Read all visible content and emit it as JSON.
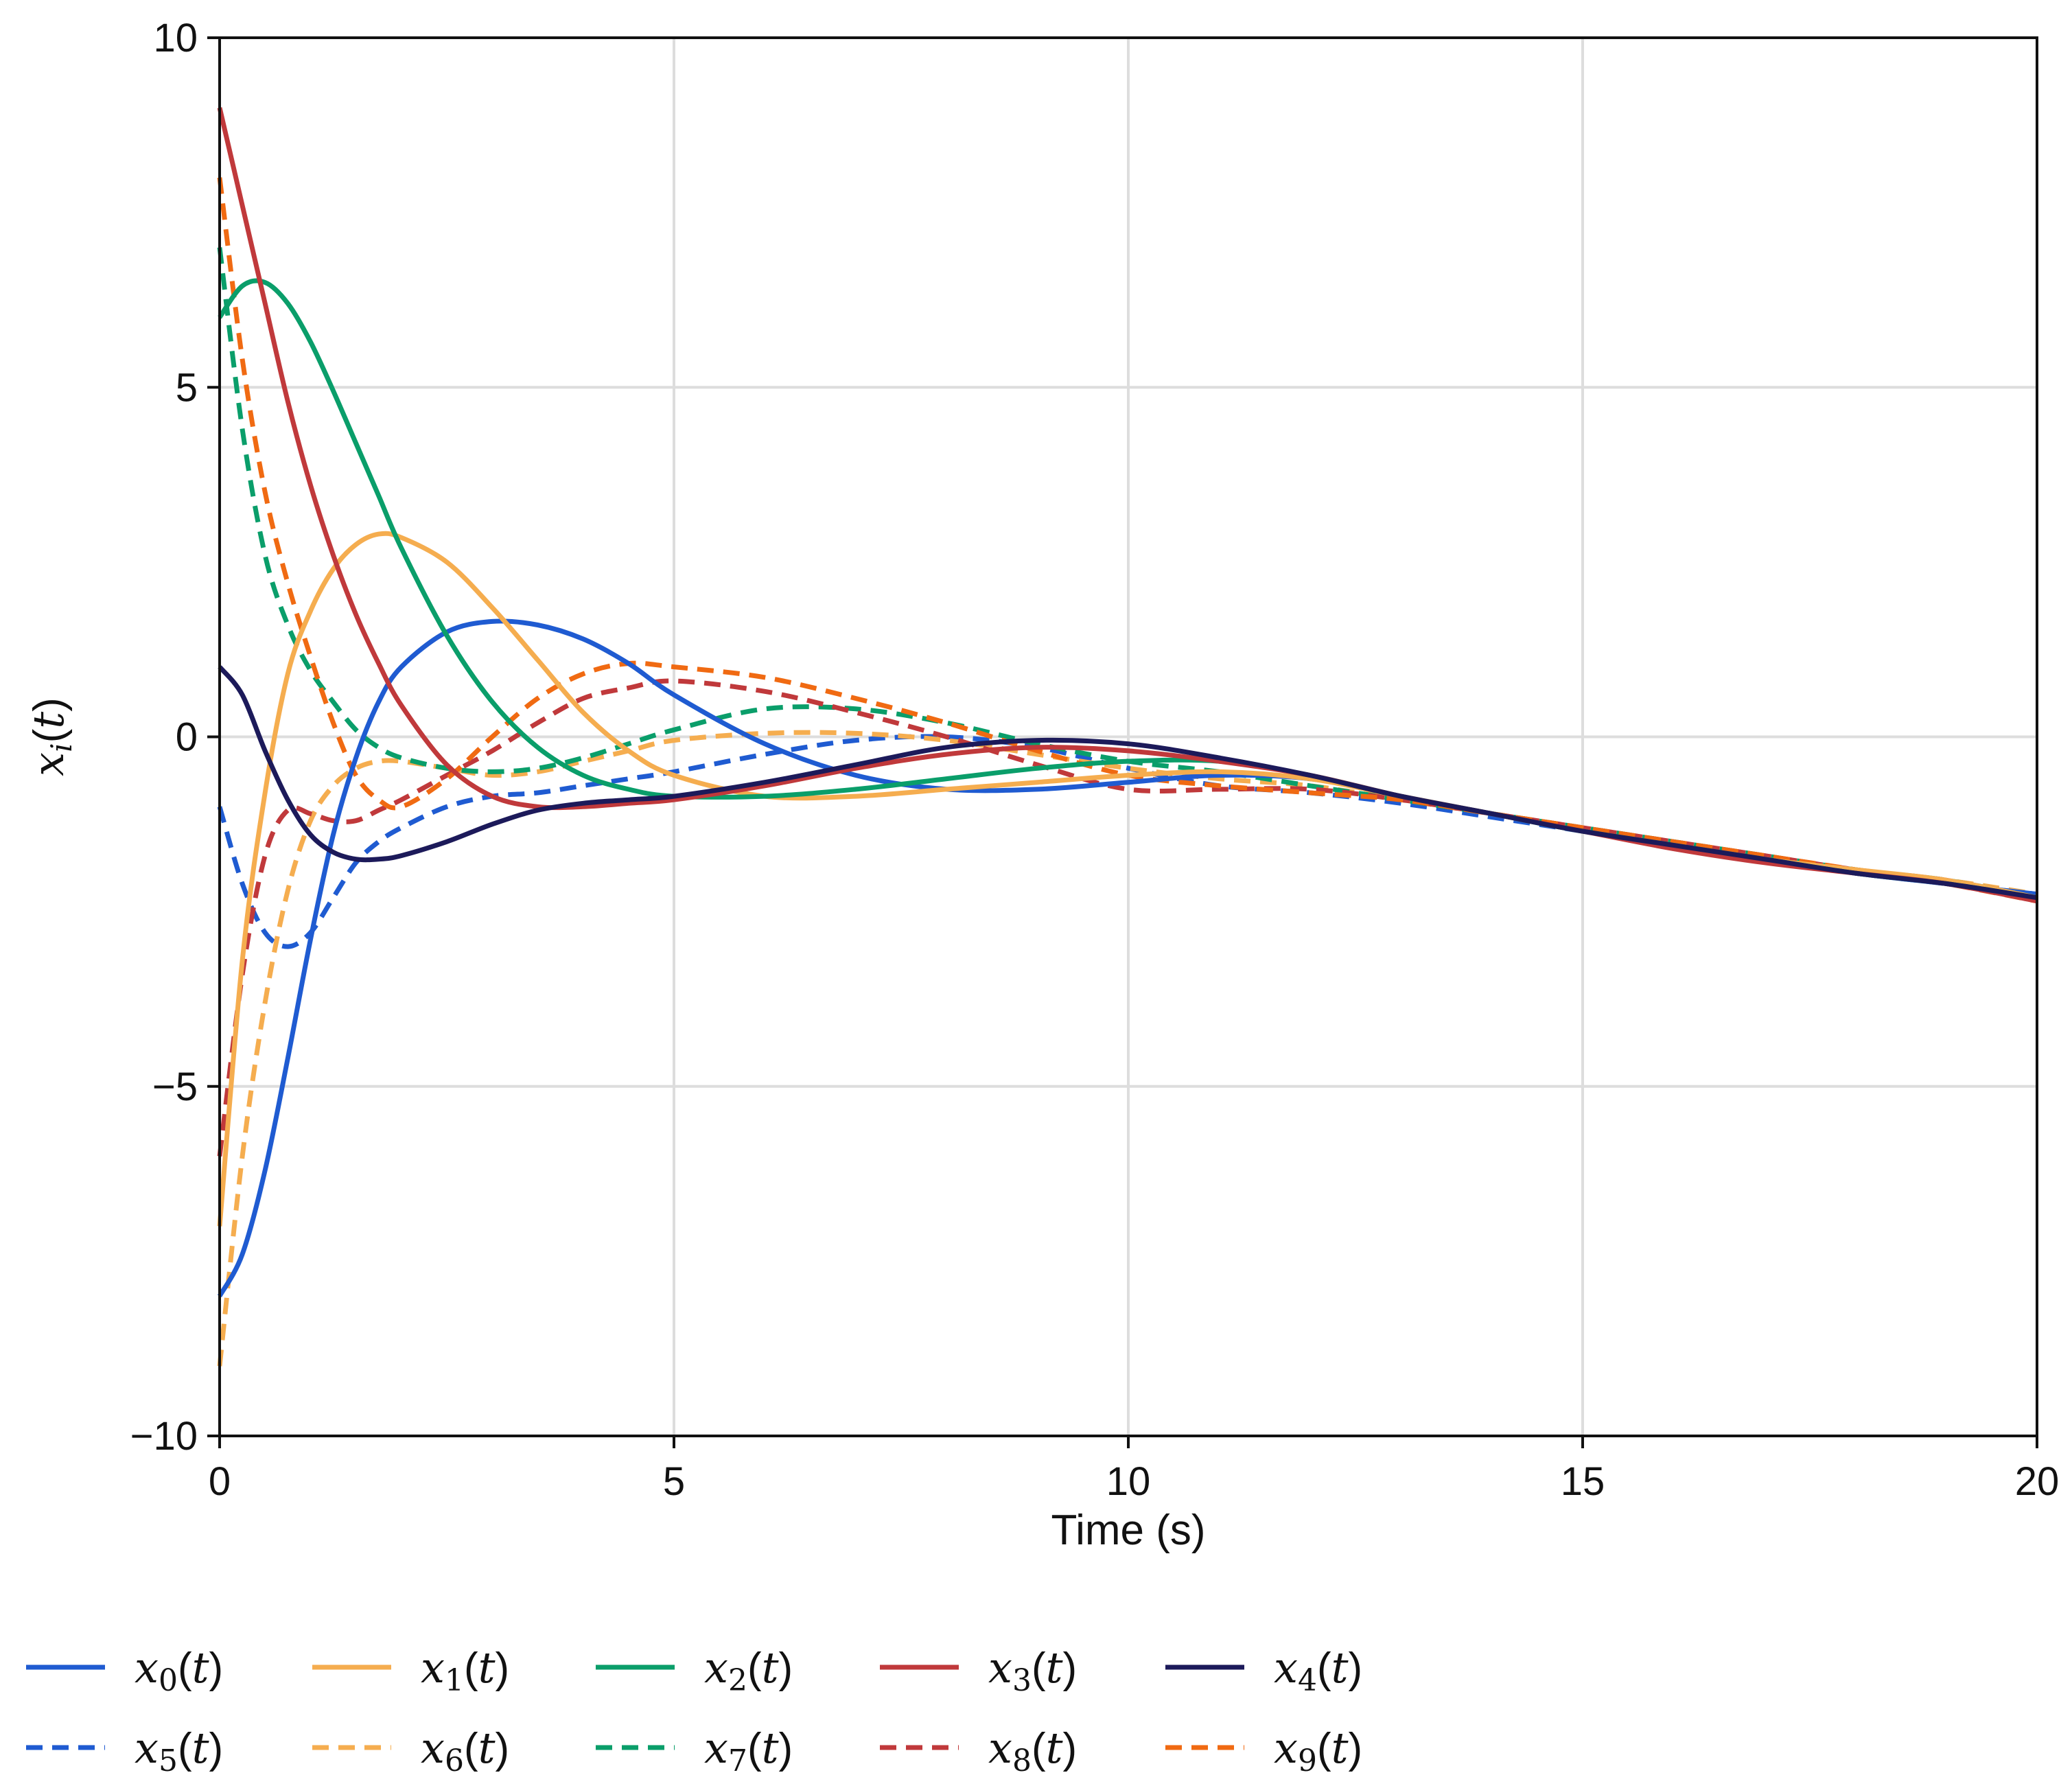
{
  "chart_data": {
    "type": "line",
    "title": "",
    "xlabel": "Time (s)",
    "ylabel": "x_i(t)",
    "xlim": [
      0,
      20
    ],
    "ylim": [
      -10,
      10
    ],
    "xticks": [
      0,
      5,
      10,
      15,
      20
    ],
    "yticks": [
      -10,
      -5,
      0,
      5,
      10
    ],
    "xtick_labels": [
      "0",
      "5",
      "10",
      "15",
      "20"
    ],
    "ytick_labels": [
      "−10",
      "−5",
      "0",
      "5",
      "10"
    ],
    "grid": true,
    "legend_position": "bottom",
    "legend_columns": 5,
    "x": [
      0,
      0.25,
      0.5,
      0.75,
      1,
      1.25,
      1.5,
      1.75,
      2,
      2.5,
      3,
      3.5,
      4,
      4.5,
      5,
      6,
      7,
      8,
      9,
      10,
      11,
      12,
      13,
      14,
      15,
      16,
      17,
      18,
      19,
      20
    ],
    "series": [
      {
        "name": "x0(t)",
        "sub": "0",
        "color": "#1f5bd1",
        "dash": "solid",
        "values": [
          -8,
          -7.4,
          -6.2,
          -4.6,
          -2.9,
          -1.4,
          -0.3,
          0.5,
          1.0,
          1.5,
          1.65,
          1.6,
          1.4,
          1.05,
          0.6,
          -0.1,
          -0.55,
          -0.75,
          -0.75,
          -0.65,
          -0.55,
          -0.6,
          -0.85,
          -1.1,
          -1.35,
          -1.55,
          -1.75,
          -1.95,
          -2.1,
          -2.25
        ]
      },
      {
        "name": "x1(t)",
        "sub": "1",
        "color": "#f5ad4f",
        "dash": "solid",
        "values": [
          -7,
          -3.2,
          -0.8,
          0.9,
          1.8,
          2.4,
          2.75,
          2.9,
          2.85,
          2.5,
          1.85,
          1.1,
          0.35,
          -0.2,
          -0.55,
          -0.85,
          -0.85,
          -0.75,
          -0.65,
          -0.55,
          -0.5,
          -0.6,
          -0.85,
          -1.1,
          -1.35,
          -1.55,
          -1.75,
          -1.9,
          -2.05,
          -2.3
        ]
      },
      {
        "name": "x2(t)",
        "sub": "2",
        "color": "#0a9e6a",
        "dash": "solid",
        "values": [
          6,
          6.45,
          6.5,
          6.2,
          5.65,
          4.95,
          4.2,
          3.45,
          2.7,
          1.45,
          0.5,
          -0.15,
          -0.55,
          -0.75,
          -0.85,
          -0.85,
          -0.75,
          -0.6,
          -0.45,
          -0.35,
          -0.35,
          -0.55,
          -0.85,
          -1.1,
          -1.35,
          -1.55,
          -1.75,
          -1.95,
          -2.1,
          -2.3
        ]
      },
      {
        "name": "x3(t)",
        "sub": "3",
        "color": "#c0393b",
        "dash": "solid",
        "values": [
          9,
          7.6,
          6.2,
          4.8,
          3.6,
          2.6,
          1.75,
          1.05,
          0.45,
          -0.4,
          -0.85,
          -1.0,
          -1.0,
          -0.95,
          -0.9,
          -0.7,
          -0.45,
          -0.25,
          -0.15,
          -0.2,
          -0.35,
          -0.55,
          -0.85,
          -1.1,
          -1.35,
          -1.6,
          -1.8,
          -1.95,
          -2.1,
          -2.35
        ]
      },
      {
        "name": "x4(t)",
        "sub": "4",
        "color": "#1c1a5a",
        "dash": "solid",
        "values": [
          1,
          0.6,
          -0.2,
          -0.9,
          -1.4,
          -1.65,
          -1.75,
          -1.75,
          -1.7,
          -1.5,
          -1.25,
          -1.05,
          -0.95,
          -0.9,
          -0.85,
          -0.65,
          -0.4,
          -0.15,
          -0.05,
          -0.1,
          -0.3,
          -0.55,
          -0.85,
          -1.1,
          -1.35,
          -1.55,
          -1.75,
          -1.95,
          -2.1,
          -2.3
        ]
      },
      {
        "name": "x5(t)",
        "sub": "5",
        "color": "#1f5bd1",
        "dash": "dashed",
        "values": [
          -1,
          -2.1,
          -2.8,
          -3.0,
          -2.8,
          -2.3,
          -1.8,
          -1.5,
          -1.3,
          -1.0,
          -0.85,
          -0.8,
          -0.7,
          -0.6,
          -0.5,
          -0.25,
          -0.05,
          0.0,
          -0.15,
          -0.45,
          -0.7,
          -0.8,
          -0.95,
          -1.15,
          -1.35,
          -1.55,
          -1.75,
          -1.95,
          -2.1,
          -2.25
        ]
      },
      {
        "name": "x6(t)",
        "sub": "6",
        "color": "#f5ad4f",
        "dash": "dashed",
        "values": [
          -9,
          -6.0,
          -3.8,
          -2.2,
          -1.2,
          -0.7,
          -0.45,
          -0.35,
          -0.35,
          -0.45,
          -0.55,
          -0.5,
          -0.35,
          -0.2,
          -0.05,
          0.05,
          0.05,
          -0.05,
          -0.25,
          -0.45,
          -0.6,
          -0.7,
          -0.9,
          -1.1,
          -1.3,
          -1.5,
          -1.7,
          -1.9,
          -2.05,
          -2.25
        ]
      },
      {
        "name": "x7(t)",
        "sub": "7",
        "color": "#0a9e6a",
        "dash": "dashed",
        "values": [
          7,
          4.4,
          2.6,
          1.6,
          0.95,
          0.5,
          0.1,
          -0.15,
          -0.3,
          -0.45,
          -0.5,
          -0.45,
          -0.3,
          -0.1,
          0.1,
          0.4,
          0.4,
          0.2,
          -0.1,
          -0.35,
          -0.5,
          -0.7,
          -0.9,
          -1.1,
          -1.3,
          -1.5,
          -1.7,
          -1.9,
          -2.05,
          -2.3
        ]
      },
      {
        "name": "x8(t)",
        "sub": "8",
        "color": "#c0393b",
        "dash": "dashed",
        "values": [
          -6,
          -3.4,
          -1.7,
          -1.05,
          -1.1,
          -1.2,
          -1.2,
          -1.05,
          -0.9,
          -0.55,
          -0.2,
          0.2,
          0.55,
          0.7,
          0.8,
          0.65,
          0.35,
          0.0,
          -0.4,
          -0.75,
          -0.75,
          -0.75,
          -0.9,
          -1.1,
          -1.3,
          -1.5,
          -1.7,
          -1.9,
          -2.05,
          -2.3
        ]
      },
      {
        "name": "x9(t)",
        "sub": "9",
        "color": "#f06a12",
        "dash": "dashed",
        "values": [
          8,
          5.4,
          3.5,
          2.2,
          1.15,
          0.2,
          -0.55,
          -0.9,
          -1.0,
          -0.6,
          0.0,
          0.55,
          0.9,
          1.05,
          1.0,
          0.85,
          0.55,
          0.2,
          -0.2,
          -0.55,
          -0.7,
          -0.8,
          -0.9,
          -1.1,
          -1.3,
          -1.5,
          -1.7,
          -1.9,
          -2.1,
          -2.35
        ]
      }
    ]
  }
}
